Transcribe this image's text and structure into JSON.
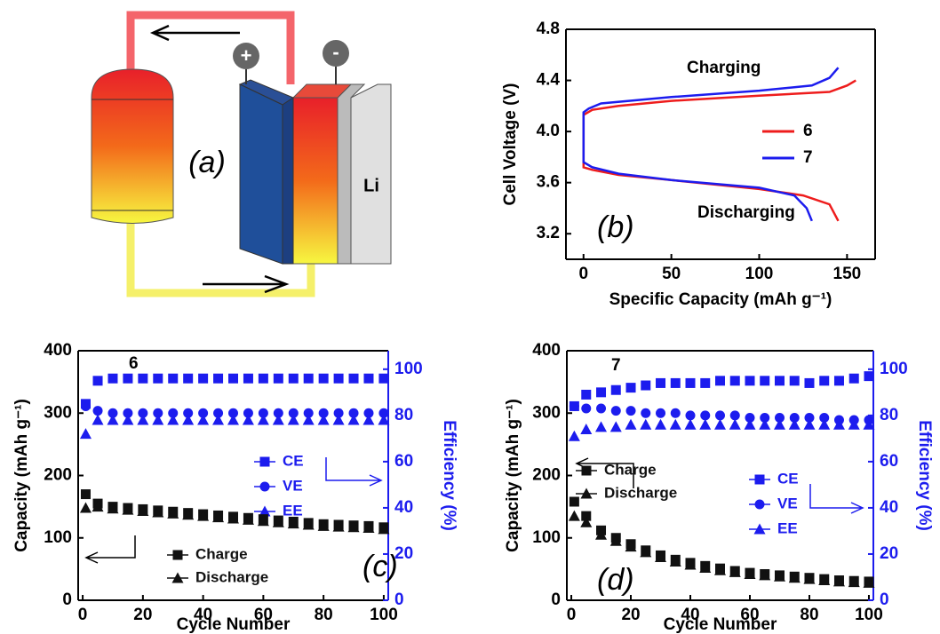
{
  "diagram": {
    "label": "(a)",
    "plus": "+",
    "minus": "-",
    "li": "Li"
  },
  "chart_data": [
    {
      "type": "line",
      "panel_label": "(b)",
      "annotations": [
        "Charging",
        "Discharging"
      ],
      "xlabel": "Specific Capacity (mAh g⁻¹)",
      "ylabel": "Cell Voltage (V)",
      "xlim": [
        -10,
        166
      ],
      "xticks": [
        0,
        50,
        100,
        150
      ],
      "ylim": [
        3.0,
        4.8
      ],
      "yticks": [
        3.2,
        3.6,
        {
          "value": 4,
          "label": "4.0"
        },
        4.4,
        4.8
      ],
      "series": [
        {
          "name": "6",
          "color": "#ee1c1c",
          "x": [
            155,
            150,
            140,
            100,
            50,
            20,
            5,
            0,
            0,
            5,
            20,
            50,
            100,
            125,
            140,
            145
          ],
          "values": [
            4.4,
            4.36,
            4.31,
            4.28,
            4.24,
            4.2,
            4.17,
            4.13,
            3.72,
            3.7,
            3.66,
            3.62,
            3.55,
            3.5,
            3.43,
            3.3
          ]
        },
        {
          "name": "7",
          "color": "#1c1cee",
          "x": [
            145,
            140,
            130,
            100,
            50,
            10,
            3,
            0,
            0,
            5,
            20,
            50,
            100,
            120,
            127,
            130
          ],
          "values": [
            4.5,
            4.42,
            4.36,
            4.32,
            4.27,
            4.22,
            4.18,
            4.15,
            3.76,
            3.72,
            3.67,
            3.62,
            3.56,
            3.5,
            3.4,
            3.3
          ]
        }
      ]
    },
    {
      "type": "scatter",
      "panel_label": "(c)",
      "annotations": [
        "6"
      ],
      "xlabel": "Cycle Number",
      "ylabel": "Capacity (mAh g⁻¹)",
      "y2label": "Efficiency (%)",
      "xlim": [
        -1.5,
        101.5
      ],
      "xticks": [
        0,
        20,
        40,
        60,
        80,
        100
      ],
      "ylim": [
        0,
        400
      ],
      "yticks": [
        0,
        100,
        200,
        300,
        400
      ],
      "y2lim": [
        0,
        108
      ],
      "y2ticks": [
        0,
        20,
        40,
        60,
        80,
        100
      ],
      "x": [
        1,
        5,
        10,
        15,
        20,
        25,
        30,
        35,
        40,
        45,
        50,
        55,
        60,
        65,
        70,
        75,
        80,
        85,
        90,
        95,
        100
      ],
      "series": [
        {
          "name": "CE",
          "color": "#1c1cee",
          "marker": "square",
          "axis": "y2",
          "values": [
            85,
            95,
            96,
            96,
            96,
            96,
            96,
            96,
            96,
            96,
            96,
            96,
            96,
            96,
            96,
            96,
            96,
            96,
            96,
            96,
            96
          ]
        },
        {
          "name": "VE",
          "color": "#1c1cee",
          "marker": "circle",
          "axis": "y2",
          "values": [
            84,
            82,
            81,
            81,
            81,
            81,
            81,
            81,
            81,
            81,
            81,
            81,
            81,
            81,
            81,
            81,
            81,
            81,
            81,
            81,
            81
          ]
        },
        {
          "name": "EE",
          "color": "#1c1cee",
          "marker": "triangle",
          "axis": "y2",
          "values": [
            72,
            78,
            78,
            78,
            78,
            78,
            78,
            78,
            78,
            78,
            78,
            78,
            78,
            78,
            78,
            78,
            78,
            78,
            78,
            78,
            78
          ]
        },
        {
          "name": "Charge",
          "color": "#111111",
          "marker": "square",
          "values": [
            170,
            155,
            150,
            148,
            146,
            144,
            142,
            140,
            138,
            136,
            134,
            132,
            130,
            128,
            126,
            124,
            122,
            121,
            120,
            119,
            117
          ]
        },
        {
          "name": "Discharge",
          "color": "#111111",
          "marker": "triangle",
          "values": [
            148,
            150,
            147,
            145,
            143,
            141,
            139,
            137,
            135,
            133,
            131,
            129,
            127,
            125,
            123,
            121,
            119,
            118,
            117,
            116,
            114
          ]
        }
      ]
    },
    {
      "type": "scatter",
      "panel_label": "(d)",
      "annotations": [
        "7"
      ],
      "xlabel": "Cycle Number",
      "ylabel": "Capacity (mAh g⁻¹)",
      "y2label": "Efficiency (%)",
      "xlim": [
        -1.5,
        101.5
      ],
      "xticks": [
        0,
        20,
        40,
        60,
        80,
        100
      ],
      "ylim": [
        0,
        400
      ],
      "yticks": [
        0,
        100,
        200,
        300,
        400
      ],
      "y2lim": [
        0,
        108
      ],
      "y2ticks": [
        0,
        20,
        40,
        60,
        80,
        100
      ],
      "x": [
        1,
        5,
        10,
        15,
        20,
        25,
        30,
        35,
        40,
        45,
        50,
        55,
        60,
        65,
        70,
        75,
        80,
        85,
        90,
        95,
        100
      ],
      "series": [
        {
          "name": "Charge",
          "color": "#111111",
          "marker": "square",
          "values": [
            158,
            135,
            112,
            100,
            90,
            80,
            72,
            65,
            60,
            55,
            51,
            47,
            44,
            42,
            40,
            38,
            36,
            34,
            32,
            31,
            30
          ]
        },
        {
          "name": "Discharge",
          "color": "#111111",
          "marker": "triangle",
          "values": [
            135,
            125,
            105,
            95,
            86,
            77,
            69,
            62,
            57,
            52,
            48,
            45,
            42,
            40,
            38,
            36,
            34,
            32,
            30,
            29,
            28
          ]
        },
        {
          "name": "CE",
          "color": "#1c1cee",
          "marker": "square",
          "axis": "y2",
          "values": [
            84,
            89,
            90,
            91,
            92,
            93,
            94,
            94,
            94,
            94,
            95,
            95,
            95,
            95,
            95,
            95,
            94,
            95,
            95,
            96,
            97
          ]
        },
        {
          "name": "VE",
          "color": "#1c1cee",
          "marker": "circle",
          "axis": "y2",
          "values": [
            84,
            83,
            83,
            82,
            82,
            81,
            81,
            81,
            80,
            80,
            80,
            80,
            79,
            79,
            79,
            79,
            79,
            79,
            78,
            78,
            78
          ]
        },
        {
          "name": "EE",
          "color": "#1c1cee",
          "marker": "triangle",
          "axis": "y2",
          "values": [
            71,
            74,
            75,
            75,
            76,
            76,
            76,
            76,
            76,
            76,
            76,
            76,
            76,
            76,
            76,
            76,
            76,
            76,
            76,
            76,
            76
          ]
        }
      ]
    }
  ]
}
